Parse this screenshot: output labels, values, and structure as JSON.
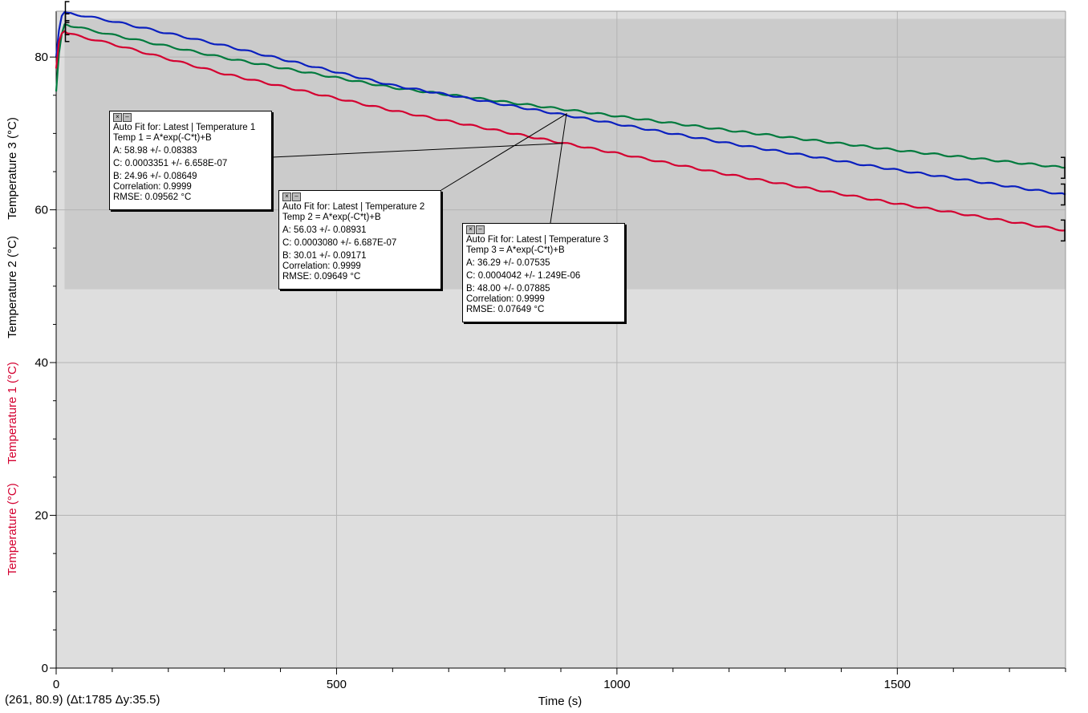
{
  "chart_data": {
    "type": "line",
    "xlabel": "Time (s)",
    "ylabels": [
      {
        "text": "Temperature (°C)",
        "color": "#d40030"
      },
      {
        "text": "Temperature 1 (°C)",
        "color": "#d40030"
      },
      {
        "text": "Temperature 2 (°C)",
        "color": "#000000"
      },
      {
        "text": "Temperature 3 (°C)",
        "color": "#000000"
      }
    ],
    "xlim": [
      0,
      1800
    ],
    "ylim": [
      0,
      86
    ],
    "x_ticks": [
      0,
      500,
      1000,
      1500
    ],
    "y_ticks": [
      0,
      20,
      40,
      60,
      80
    ],
    "grid": true,
    "fit_region": {
      "x": [
        15,
        1800
      ],
      "y": [
        49.6,
        85
      ]
    },
    "series": [
      {
        "color": "#007a3d",
        "x": [
          0,
          5,
          10,
          15,
          20,
          100,
          300,
          600,
          900,
          1200,
          1500,
          1800
        ],
        "y": [
          75.5,
          80.5,
          83.0,
          84.3,
          84.2,
          82.9,
          79.9,
          76.0,
          73.2,
          70.4,
          67.8,
          65.5
        ]
      },
      {
        "color": "#0a1fbf",
        "x": [
          0,
          5,
          10,
          15,
          20,
          100,
          300,
          600,
          900,
          1200,
          1500,
          1800
        ],
        "y": [
          80.0,
          83.5,
          85.4,
          85.9,
          85.8,
          84.7,
          81.5,
          76.3,
          72.5,
          68.7,
          65.2,
          62.0
        ]
      },
      {
        "color": "#d40030",
        "x": [
          0,
          5,
          10,
          15,
          20,
          100,
          300,
          600,
          900,
          1200,
          1500,
          1800
        ],
        "y": [
          78.5,
          82.0,
          83.1,
          83.4,
          83.1,
          81.7,
          77.8,
          73.0,
          68.8,
          64.6,
          60.8,
          57.3
        ]
      }
    ],
    "fits": [
      {
        "title": "Auto Fit for: Latest | Temperature 1",
        "equation": "Temp 1 = A*exp(-C*t)+B",
        "A": "A: 58.98 +/- 0.08383",
        "C": "C: 0.0003351 +/- 6.658E-07",
        "B": "B: 24.96 +/- 0.08649",
        "correlation": "Correlation: 0.9999",
        "rmse": "RMSE: 0.09562 °C",
        "anchor": [
          904,
          68.7
        ]
      },
      {
        "title": "Auto Fit for: Latest | Temperature 2",
        "equation": "Temp 2 = A*exp(-C*t)+B",
        "A": "A: 56.03 +/- 0.08931",
        "C": "C: 0.0003080 +/- 6.687E-07",
        "B": "B: 30.01 +/- 0.09171",
        "correlation": "Correlation: 0.9999",
        "rmse": "RMSE: 0.09649 °C",
        "anchor": [
          911,
          72.6
        ]
      },
      {
        "title": "Auto Fit for: Latest | Temperature 3",
        "equation": "Temp 3 = A*exp(-C*t)+B",
        "A": "A: 36.29 +/- 0.07535",
        "C": "C: 0.0004042 +/- 1.249E-06",
        "B": "B: 48.00 +/- 0.07885",
        "correlation": "Correlation: 0.9999",
        "rmse": "RMSE: 0.07649 °C",
        "anchor": [
          910,
          72.6
        ]
      }
    ]
  },
  "status": {
    "coords": "(261, 80.9)",
    "delta": "(Δt:1785 Δy:35.5)"
  }
}
